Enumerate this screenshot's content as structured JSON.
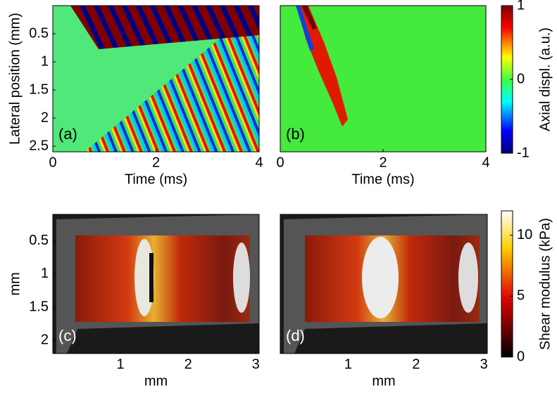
{
  "chart_data": [
    {
      "type": "heatmap",
      "panel_label": "(a)",
      "xlabel": "Time (ms)",
      "ylabel": "Lateral position (mm)",
      "xlim": [
        0,
        4
      ],
      "xticks": [
        0,
        2,
        4
      ],
      "ylim": [
        0,
        2.6
      ],
      "yticks": [
        0.5,
        1,
        1.5,
        2,
        2.5
      ],
      "y_inverted": true
    },
    {
      "type": "heatmap",
      "panel_label": "(b)",
      "xlabel": "Time (ms)",
      "xlim": [
        0,
        4
      ],
      "xticks": [
        0,
        2,
        4
      ],
      "ylim": [
        0,
        2.6
      ],
      "y_inverted": true
    },
    {
      "type": "colorbar",
      "label": "Axial displ. (a.u.)",
      "ylim": [
        -1,
        1
      ],
      "yticks": [
        -1,
        0,
        1
      ],
      "colormap": "jet"
    },
    {
      "type": "image",
      "panel_label": "(c)",
      "xlabel": "mm",
      "ylabel": "mm",
      "xlim": [
        0,
        3.05
      ],
      "xticks": [
        1,
        2,
        3
      ],
      "ylim": [
        0.1,
        2.2
      ],
      "yticks": [
        0.5,
        1,
        1.5,
        2
      ],
      "y_inverted": true
    },
    {
      "type": "image",
      "panel_label": "(d)",
      "xlabel": "mm",
      "xlim": [
        0,
        3.05
      ],
      "xticks": [
        1,
        2,
        3
      ],
      "ylim": [
        0.1,
        2.2
      ],
      "y_inverted": true
    },
    {
      "type": "colorbar",
      "label": "Shear modulus (kPa)",
      "ylim": [
        0,
        12
      ],
      "yticks": [
        0,
        5,
        10
      ],
      "colormap": "hot"
    }
  ]
}
